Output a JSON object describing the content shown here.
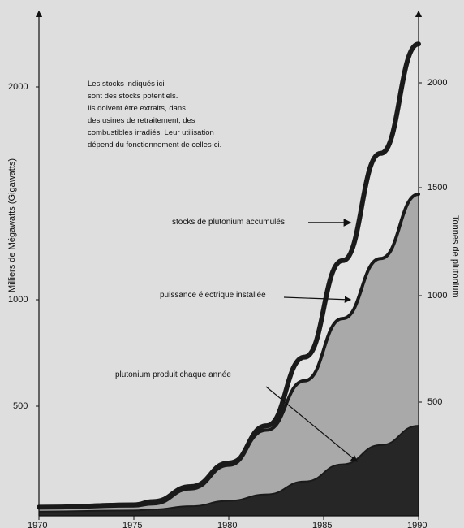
{
  "chart_data": {
    "type": "area",
    "x": [
      1970,
      1975,
      1976,
      1978,
      1980,
      1982,
      1984,
      1986,
      1988,
      1990
    ],
    "xlim": [
      1970,
      1990
    ],
    "x_ticks": [
      "1970",
      "1975",
      "1980",
      "1985",
      "1990"
    ],
    "ylabel": "Milliers de Mégawatts (Gigawatts)",
    "ylim": [
      0,
      2400
    ],
    "y_ticks_left": [
      "500",
      "1000",
      "2000"
    ],
    "y2label": "Tonnes de plutonium",
    "y2_ticks_right": [
      "500",
      "1000",
      "1500",
      "2000"
    ],
    "y2lim": [
      0,
      2400
    ],
    "note_lines": [
      "Les stocks indiqués ici",
      "sont des stocks potentiels.",
      "Ils doivent être extraits, dans",
      "des usines de retraitement, des",
      "combustibles irradiés. Leur utilisation",
      "dépend du fonctionnement de celles-ci."
    ],
    "series": [
      {
        "name": "stocks de plutonium accumulés",
        "axis": "right",
        "values": [
          40,
          50,
          60,
          130,
          240,
          420,
          740,
          1190,
          1690,
          2200
        ]
      },
      {
        "name": "puissance électrique installée",
        "axis": "left",
        "values": [
          40,
          55,
          70,
          140,
          250,
          400,
          630,
          920,
          1200,
          1500
        ]
      },
      {
        "name": "plutonium produit chaque année",
        "axis": "right",
        "values": [
          20,
          25,
          30,
          45,
          70,
          100,
          160,
          240,
          330,
          420
        ]
      }
    ],
    "colors": {
      "background": "#dedede",
      "fill_capacity": "#a9a9a9",
      "fill_annual": "#262626",
      "fill_stocks_light": "#e4e4e4",
      "line": "#1a1a1a"
    }
  }
}
